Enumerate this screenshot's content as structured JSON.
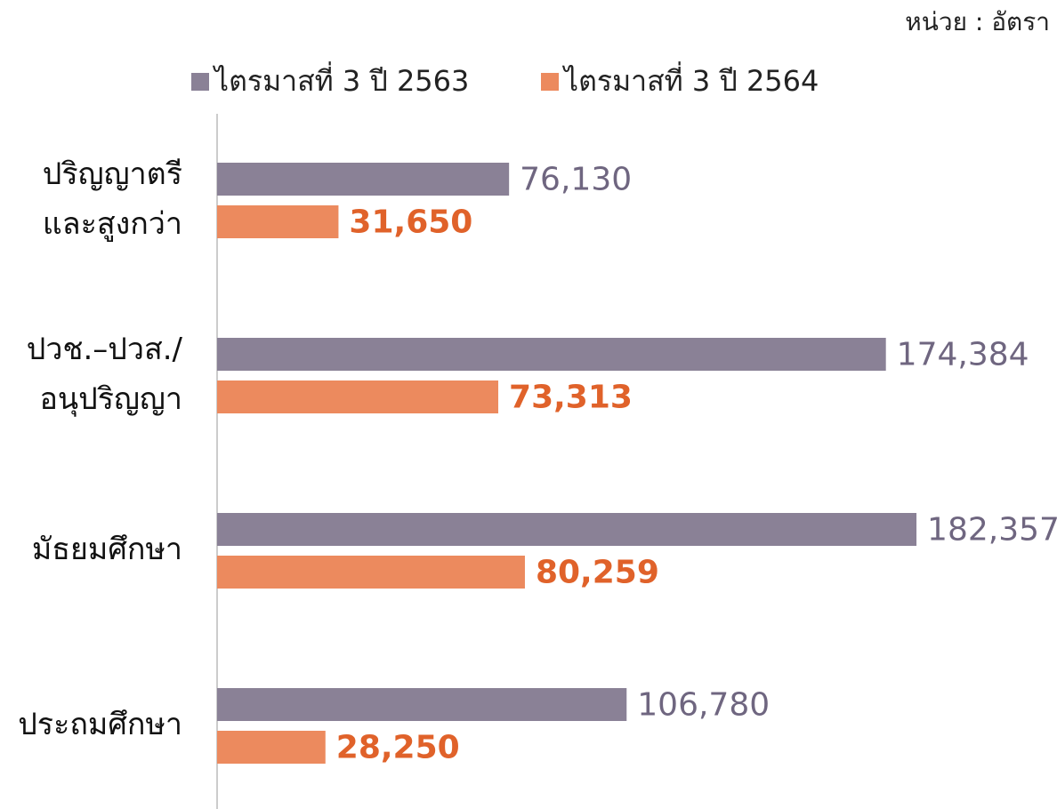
{
  "chart_data": {
    "type": "hbar",
    "annotation": "หน่วย : อัตรา",
    "categories": [
      [
        "ปริญญาตรี",
        "และสูงกว่า"
      ],
      [
        "ปวช.–ปวส./",
        "อนุปริญญา"
      ],
      [
        "มัธยมศึกษา"
      ],
      [
        "ประถมศึกษา"
      ]
    ],
    "series": [
      {
        "name": "ไตรมาสที่ 3 ปี 2563",
        "color": "#8a8196",
        "label_color": "#6f6680",
        "values": [
          76130,
          174384,
          182357,
          106780
        ],
        "value_labels": [
          "76,130",
          "174,384",
          "182,357",
          "106,780"
        ]
      },
      {
        "name": "ไตรมาสที่ 3 ปี 2564",
        "color": "#ec8a5e",
        "label_color": "#e0622a",
        "values": [
          31650,
          73313,
          80259,
          28250
        ],
        "value_labels": [
          "31,650",
          "73,313",
          "80,259",
          "28,250"
        ]
      }
    ],
    "xlim": [
      0,
      219000
    ]
  }
}
